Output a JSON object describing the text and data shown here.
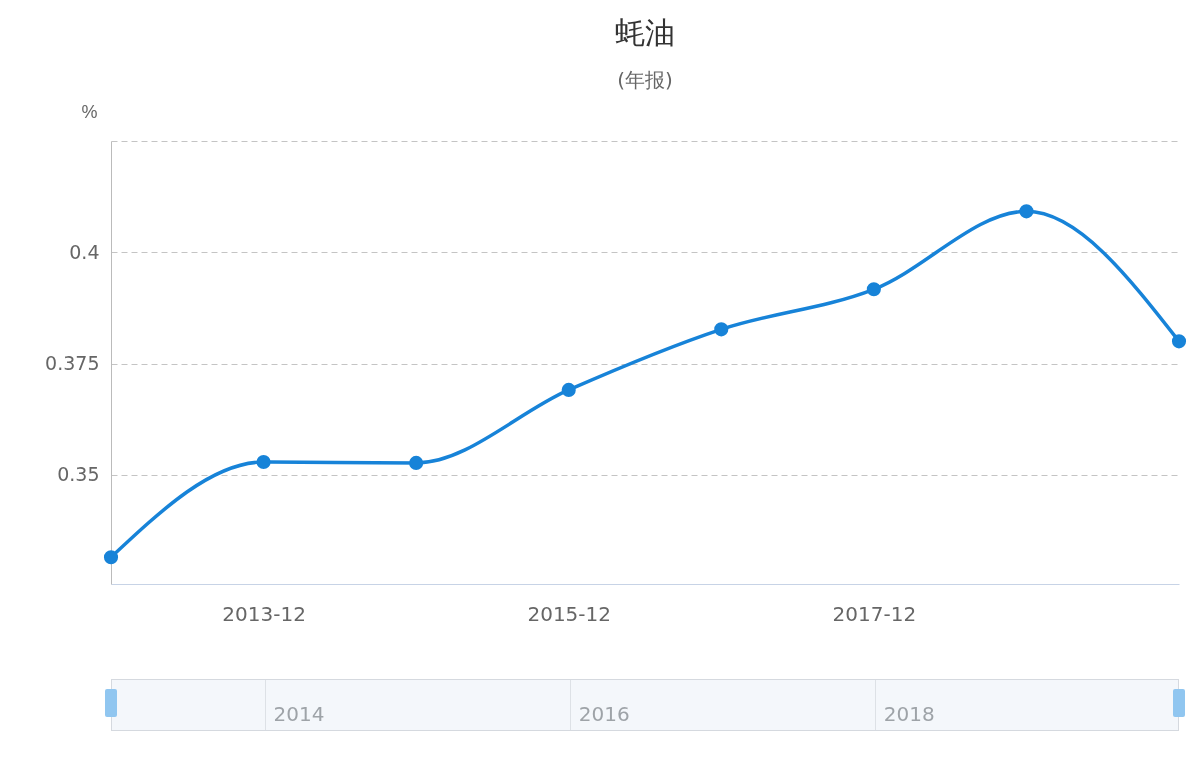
{
  "chart_data": {
    "type": "line",
    "title": "蚝油",
    "subtitle": "(年报)",
    "ylabel": "%",
    "categories": [
      null,
      "2013-12",
      null,
      "2015-12",
      null,
      "2017-12",
      null,
      null
    ],
    "series": [
      {
        "color": "#1783d8",
        "values": [
          0.3315,
          0.3529,
          0.3527,
          0.3691,
          0.3827,
          0.3917,
          0.4092,
          0.38
        ]
      }
    ],
    "ylim": [
      0.3255,
      0.425
    ],
    "yticks": [
      0.35,
      0.375,
      0.4,
      {
        "value": 0.425,
        "label": null
      }
    ],
    "grid": "y",
    "marker": "circle",
    "line_style": "solid",
    "annotations": [
      "2014",
      "2016",
      "2018"
    ]
  }
}
